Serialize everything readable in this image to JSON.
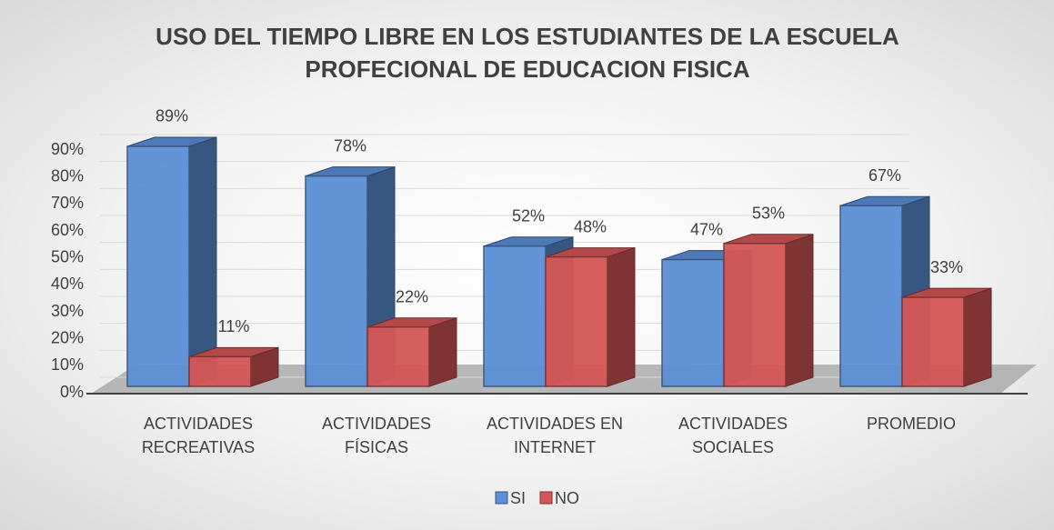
{
  "chart_data": {
    "type": "bar3d",
    "title": "USO DEL TIEMPO LIBRE EN LOS ESTUDIANTES DE LA ESCUELA PROFECIONAL DE EDUCACION FISICA",
    "categories": [
      "ACTIVIDADES RECREATIVAS",
      "ACTIVIDADES FÍSICAS",
      "ACTIVIDADES EN INTERNET",
      "ACTIVIDADES SOCIALES",
      "PROMEDIO"
    ],
    "series": [
      {
        "name": "SI",
        "color": "#5b8fd6",
        "values": [
          89,
          78,
          52,
          47,
          67
        ],
        "value_labels": [
          "89%",
          "78%",
          "52%",
          "47%",
          "67%"
        ]
      },
      {
        "name": "NO",
        "color": "#d45656",
        "values": [
          11,
          22,
          48,
          53,
          33
        ],
        "value_labels": [
          "11%",
          "22%",
          "48%",
          "53%",
          "33%"
        ]
      }
    ],
    "ylim": [
      0,
      90
    ],
    "yticks": [
      {
        "value": 0,
        "label": "0%"
      },
      {
        "value": 10,
        "label": "10%"
      },
      {
        "value": 20,
        "label": "20%"
      },
      {
        "value": 30,
        "label": "30%"
      },
      {
        "value": 40,
        "label": "40%"
      },
      {
        "value": 50,
        "label": "50%"
      },
      {
        "value": 60,
        "label": "60%"
      },
      {
        "value": 70,
        "label": "70%"
      },
      {
        "value": 80,
        "label": "80%"
      },
      {
        "value": 90,
        "label": "90%"
      }
    ],
    "grid": true,
    "legend": "bottom"
  }
}
